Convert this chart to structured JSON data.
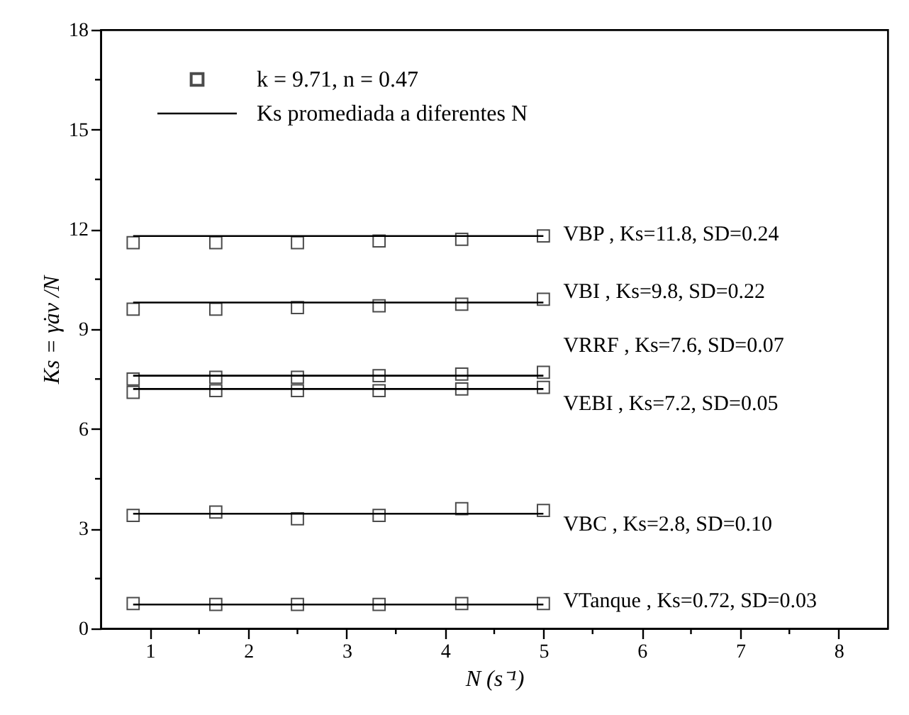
{
  "chart_data": {
    "type": "scatter",
    "xlabel": "N (s⁻¹)",
    "ylabel": "Ks = γ̇av /N",
    "xlim": [
      0.5,
      8.5
    ],
    "ylim": [
      0,
      18
    ],
    "xticks": [
      1,
      {
        "value": 1.5,
        "label": null
      },
      2,
      {
        "value": 2.5,
        "label": null
      },
      3,
      {
        "value": 3.5,
        "label": null
      },
      4,
      {
        "value": 4.5,
        "label": null
      },
      5,
      {
        "value": 5.5,
        "label": null
      },
      6,
      {
        "value": 6.5,
        "label": null
      },
      7,
      {
        "value": 7.5,
        "label": null
      },
      8
    ],
    "yticks": [
      0,
      {
        "value": 1.5,
        "label": null
      },
      3,
      {
        "value": 4.5,
        "label": null
      },
      6,
      {
        "value": 7.5,
        "label": null
      },
      9,
      {
        "value": 10.5,
        "label": null
      },
      12,
      {
        "value": 13.5,
        "label": null
      },
      15,
      {
        "value": 16.5,
        "label": null
      },
      18
    ],
    "x": [
      0.83,
      1.67,
      2.5,
      3.33,
      4.17,
      5
    ],
    "legend": "top left",
    "grid": false,
    "series": [
      {
        "name": "k = 9.71, n = 0.47",
        "marker": "square",
        "color": "#000000",
        "values": [
          11.6,
          11.6,
          11.6,
          11.65,
          11.7,
          11.8
        ]
      },
      {
        "marker": "square",
        "color": "#000000",
        "values": [
          9.6,
          9.6,
          9.65,
          9.7,
          9.75,
          9.9
        ]
      },
      {
        "marker": "square",
        "color": "#000000",
        "values": [
          7.5,
          7.55,
          7.55,
          7.6,
          7.65,
          7.7
        ]
      },
      {
        "marker": "square",
        "color": "#000000",
        "values": [
          7.1,
          7.15,
          7.15,
          7.15,
          7.2,
          7.25
        ]
      },
      {
        "marker": "square",
        "color": "#000000",
        "values": [
          3.4,
          3.5,
          3.3,
          3.4,
          3.6,
          3.55
        ]
      },
      {
        "marker": "square",
        "color": "#000000",
        "values": [
          0.75,
          0.72,
          0.72,
          0.72,
          0.75,
          0.75
        ]
      },
      {
        "name": "Ks promediada a diferentes N",
        "type": "line",
        "marker": "none",
        "line_style": "solid",
        "color": "#000000",
        "values": [
          11.8,
          11.8,
          11.8,
          11.8,
          11.8,
          11.8
        ]
      },
      {
        "type": "line",
        "marker": "none",
        "line_style": "solid",
        "color": "#000000",
        "values": [
          9.8,
          9.8,
          9.8,
          9.8,
          9.8,
          9.8
        ]
      },
      {
        "type": "line",
        "marker": "none",
        "line_style": "solid",
        "color": "#000000",
        "values": [
          7.6,
          7.6,
          7.6,
          7.6,
          7.6,
          7.6
        ]
      },
      {
        "type": "line",
        "marker": "none",
        "line_style": "solid",
        "color": "#000000",
        "values": [
          7.2,
          7.2,
          7.2,
          7.2,
          7.2,
          7.2
        ]
      },
      {
        "type": "line",
        "marker": "none",
        "line_style": "solid",
        "color": "#000000",
        "values": [
          3.45,
          3.45,
          3.45,
          3.45,
          3.45,
          3.45
        ]
      },
      {
        "type": "line",
        "marker": "none",
        "line_style": "solid",
        "color": "#000000",
        "values": [
          0.72,
          0.72,
          0.72,
          0.72,
          0.72,
          0.72
        ]
      }
    ],
    "annotations": [
      "VBP , Ks=11.8, SD=0.24",
      "VBI , Ks=9.8, SD=0.22",
      "VRRF , Ks=7.6, SD=0.07",
      "VEBI , Ks=7.2, SD=0.05",
      "VBC , Ks=2.8, SD=0.10",
      "VTanque , Ks=0.72, SD=0.03"
    ]
  }
}
